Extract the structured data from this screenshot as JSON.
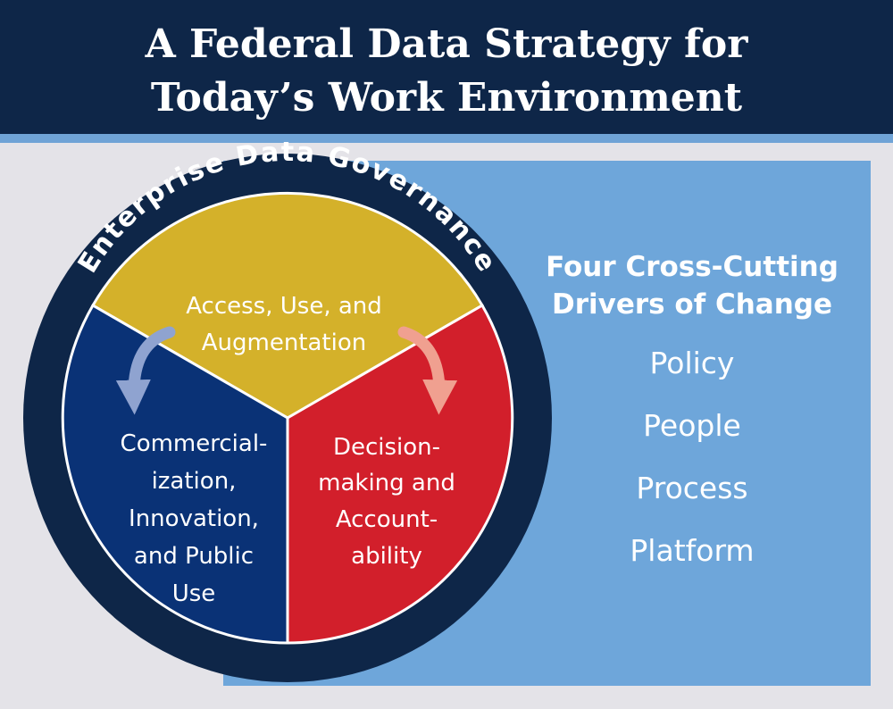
{
  "title": {
    "line1": "A Federal Data Strategy for",
    "line2": "Today’s Work Environment"
  },
  "ring_label": "Enterprise Data Governance",
  "segments": {
    "top": {
      "lines": [
        "Access, Use, and",
        "Augmentation"
      ],
      "color": "#d4b12a"
    },
    "left": {
      "lines": [
        "Commercial-",
        "ization,",
        "Innovation,",
        "and Public",
        "Use"
      ],
      "color": "#0a3276"
    },
    "right": {
      "lines": [
        "Decision-",
        "making and",
        "Account-",
        "ability"
      ],
      "color": "#d21f2b"
    }
  },
  "drivers": {
    "heading_line1": "Four Cross-Cutting",
    "heading_line2": "Drivers of Change",
    "items": [
      "Policy",
      "People",
      "Process",
      "Platform"
    ]
  },
  "colors": {
    "header": "#0e2648",
    "header_stripe": "#6fa3d6",
    "panel": "#6ea6da",
    "background": "#e4e3e8",
    "ring": "#0e2648",
    "arrow_left": "#8fa3d0",
    "arrow_right": "#f0a090"
  }
}
